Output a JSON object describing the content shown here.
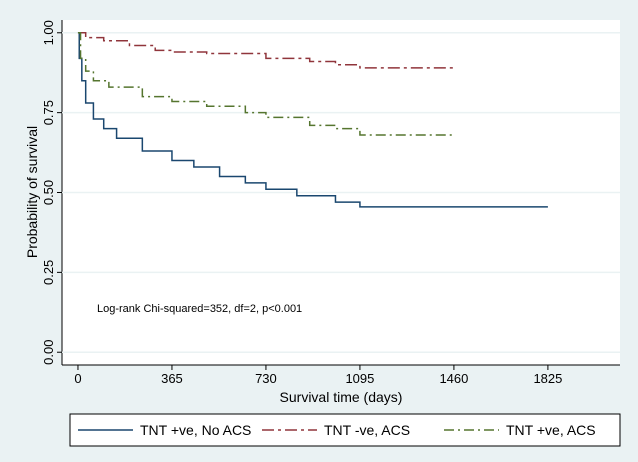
{
  "chart_data": {
    "type": "line",
    "xlabel": "Survival time (days)",
    "ylabel": "Probability of survival",
    "annotation": "Log-rank Chi-squared=352, df=2, p<0.001",
    "xlim": [
      -62,
      2105
    ],
    "ylim": [
      -0.04,
      1.04
    ],
    "xticks": [
      0,
      365,
      730,
      1095,
      1460,
      1825
    ],
    "yticks": [
      {
        "value": 0,
        "label": "0.00"
      },
      {
        "value": 0.25,
        "label": "0.25"
      },
      {
        "value": 0.5,
        "label": "0.50"
      },
      {
        "value": 0.75,
        "label": "0.75"
      },
      {
        "value": 1,
        "label": "1.00"
      }
    ],
    "grid": true,
    "legend": "bottom",
    "series": [
      {
        "name": "TNT +ve, No ACS",
        "color": "#1a476f",
        "dash": "solid",
        "x": [
          0,
          5,
          15,
          30,
          60,
          100,
          150,
          250,
          365,
          450,
          550,
          650,
          730,
          850,
          1000,
          1095,
          1825
        ],
        "values": [
          1.0,
          0.92,
          0.85,
          0.78,
          0.73,
          0.7,
          0.67,
          0.63,
          0.6,
          0.58,
          0.55,
          0.53,
          0.51,
          0.49,
          0.47,
          0.455,
          0.455
        ]
      },
      {
        "name": "TNT -ve, ACS",
        "color": "#90353b",
        "dash": "long-dash",
        "x": [
          0,
          30,
          100,
          200,
          300,
          365,
          500,
          730,
          900,
          1000,
          1095,
          1460
        ],
        "values": [
          1.0,
          0.985,
          0.975,
          0.96,
          0.945,
          0.94,
          0.935,
          0.92,
          0.91,
          0.9,
          0.89,
          0.89
        ]
      },
      {
        "name": "TNT +ve, ACS",
        "color": "#55752f",
        "dash": "dash-dot",
        "x": [
          0,
          10,
          30,
          60,
          120,
          250,
          365,
          500,
          650,
          730,
          900,
          1000,
          1095,
          1460
        ],
        "values": [
          1.0,
          0.92,
          0.88,
          0.85,
          0.83,
          0.8,
          0.785,
          0.77,
          0.75,
          0.735,
          0.71,
          0.7,
          0.68,
          0.68
        ]
      }
    ]
  }
}
